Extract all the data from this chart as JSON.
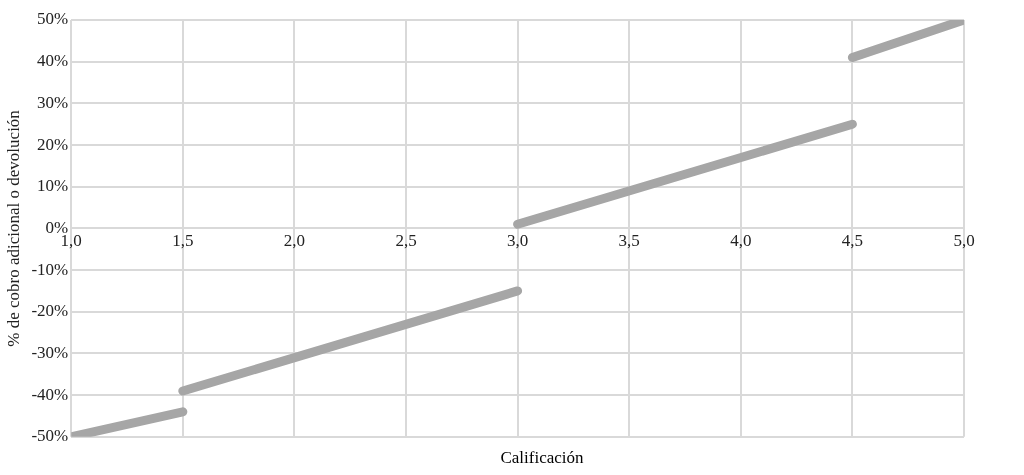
{
  "chart_data": {
    "type": "line",
    "xlabel": "Calificación",
    "ylabel": "% de cobro adicional o devolución",
    "series": [
      {
        "color": "#a6a6a6",
        "x": [
          1,
          1.5
        ],
        "values": [
          -50,
          -44
        ]
      },
      {
        "color": "#a6a6a6",
        "x": [
          1.5,
          3
        ],
        "values": [
          -39,
          -15
        ]
      },
      {
        "color": "#a6a6a6",
        "x": [
          3,
          4.5
        ],
        "values": [
          1,
          25
        ]
      },
      {
        "color": "#a6a6a6",
        "x": [
          4.5,
          5
        ],
        "values": [
          41,
          50
        ]
      }
    ],
    "xlim": [
      1,
      5
    ],
    "xticks": [
      {
        "value": 1,
        "label": "1,0"
      },
      {
        "value": 1.5,
        "label": "1,5"
      },
      {
        "value": 2,
        "label": "2,0"
      },
      {
        "value": 2.5,
        "label": "2,5"
      },
      {
        "value": 3,
        "label": "3,0"
      },
      {
        "value": 3.5,
        "label": "3,5"
      },
      {
        "value": 4,
        "label": "4,0"
      },
      {
        "value": 4.5,
        "label": "4,5"
      },
      {
        "value": 5,
        "label": "5,0"
      }
    ],
    "ylim": [
      -50,
      50
    ],
    "yticks": [
      {
        "value": -50,
        "label": "-50%"
      },
      {
        "value": -40,
        "label": "-40%"
      },
      {
        "value": -30,
        "label": "-30%"
      },
      {
        "value": -20,
        "label": "-20%"
      },
      {
        "value": -10,
        "label": "-10%"
      },
      {
        "value": 0,
        "label": "0%"
      },
      {
        "value": 10,
        "label": "10%"
      },
      {
        "value": 20,
        "label": "20%"
      },
      {
        "value": 30,
        "label": "30%"
      },
      {
        "value": 40,
        "label": "40%"
      },
      {
        "value": 50,
        "label": "50%"
      }
    ],
    "grid": true,
    "legend": false,
    "marker": "none",
    "line_style": "solid"
  }
}
